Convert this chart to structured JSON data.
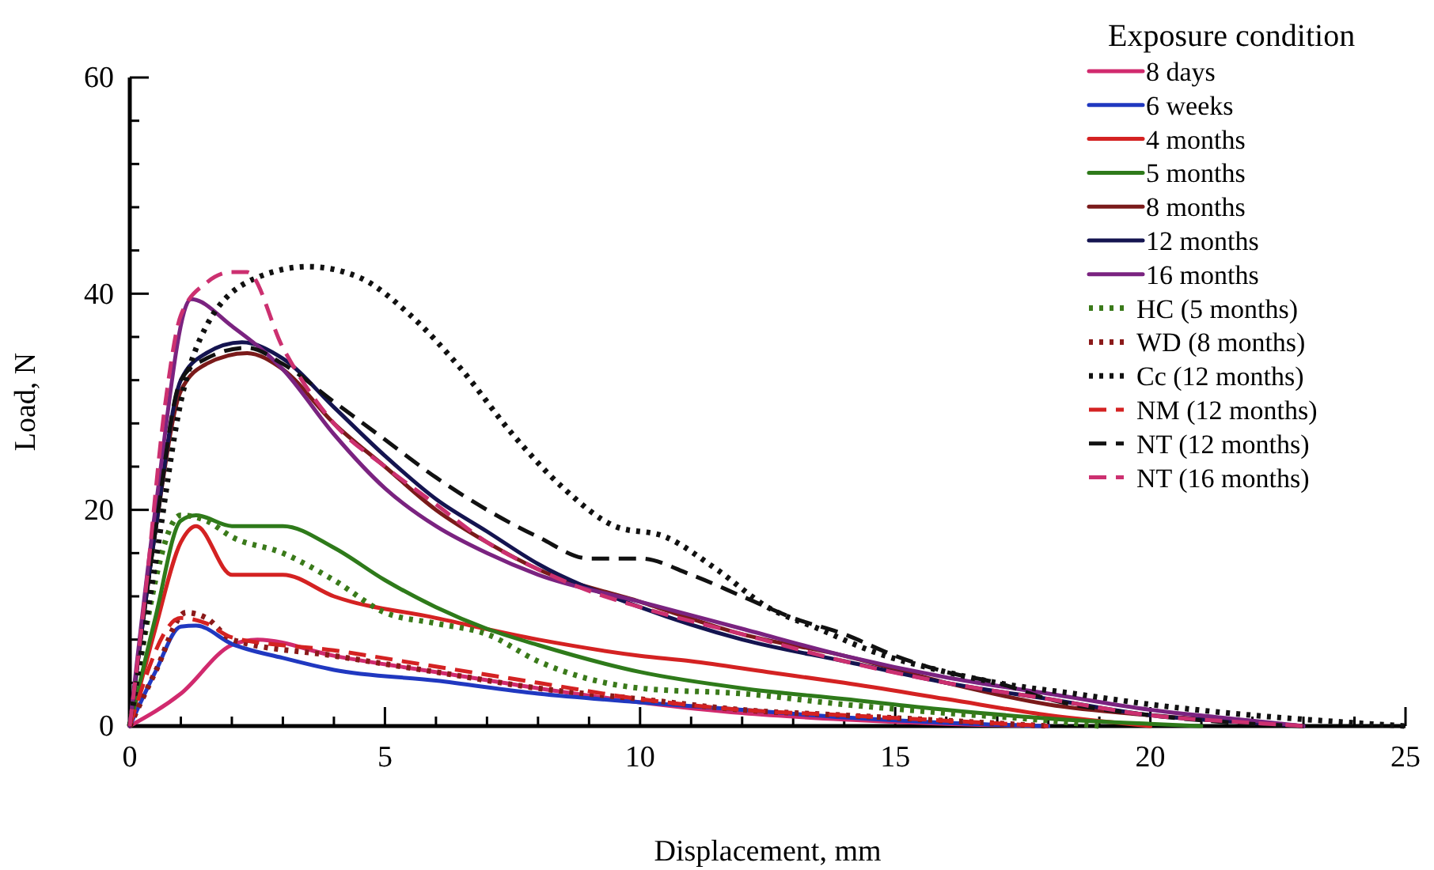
{
  "chart_data": {
    "type": "line",
    "xlabel": "Displacement, mm",
    "ylabel": "Load, N",
    "legend_title": "Exposure condition",
    "legend": "top right",
    "grid": false,
    "xlim": [
      0,
      25
    ],
    "ylim": [
      0,
      60
    ],
    "xticks": [
      0,
      {
        "value": 1,
        "label": null
      },
      {
        "value": 2,
        "label": null
      },
      {
        "value": 3,
        "label": null
      },
      {
        "value": 4,
        "label": null
      },
      5,
      {
        "value": 6,
        "label": null
      },
      {
        "value": 7,
        "label": null
      },
      {
        "value": 8,
        "label": null
      },
      {
        "value": 9,
        "label": null
      },
      10,
      {
        "value": 11,
        "label": null
      },
      {
        "value": 12,
        "label": null
      },
      {
        "value": 13,
        "label": null
      },
      {
        "value": 14,
        "label": null
      },
      15,
      {
        "value": 16,
        "label": null
      },
      {
        "value": 17,
        "label": null
      },
      {
        "value": 18,
        "label": null
      },
      {
        "value": 19,
        "label": null
      },
      20,
      {
        "value": 21,
        "label": null
      },
      {
        "value": 22,
        "label": null
      },
      {
        "value": 23,
        "label": null
      },
      {
        "value": 24,
        "label": null
      },
      25
    ],
    "yticks": [
      0,
      {
        "value": 4,
        "label": null
      },
      {
        "value": 8,
        "label": null
      },
      {
        "value": 12,
        "label": null
      },
      {
        "value": 16,
        "label": null
      },
      20,
      {
        "value": 24,
        "label": null
      },
      {
        "value": 28,
        "label": null
      },
      {
        "value": 32,
        "label": null
      },
      {
        "value": 36,
        "label": null
      },
      40,
      {
        "value": 44,
        "label": null
      },
      {
        "value": 48,
        "label": null
      },
      {
        "value": 52,
        "label": null
      },
      {
        "value": 56,
        "label": null
      },
      60
    ],
    "series": [
      {
        "name": "8 days",
        "color": "#d12a6e",
        "line_style": "solid",
        "x": [
          0,
          1,
          2,
          2.5,
          4,
          6,
          8,
          10,
          12,
          14,
          16,
          18
        ],
        "values": [
          0,
          3,
          7.5,
          8,
          6.5,
          5,
          3.5,
          2.2,
          1.2,
          0.6,
          0.2,
          0
        ]
      },
      {
        "name": "6 weeks",
        "color": "#2038c0",
        "line_style": "solid",
        "x": [
          0,
          0.5,
          1,
          1.3,
          2,
          3,
          4,
          6,
          8,
          10,
          12,
          14,
          16,
          18
        ],
        "values": [
          0,
          5,
          9.2,
          9.3,
          7.6,
          6.3,
          5.2,
          4.2,
          3,
          2.2,
          1.5,
          0.8,
          0.3,
          0
        ]
      },
      {
        "name": "4 months",
        "color": "#d42222",
        "line_style": "solid",
        "x": [
          0,
          0.5,
          1,
          1.3,
          2,
          3,
          4,
          6,
          8,
          10,
          11,
          12.5,
          14,
          16,
          18,
          20
        ],
        "values": [
          0,
          9,
          17,
          18.5,
          14,
          14,
          12,
          10,
          8,
          6.5,
          6,
          5,
          4,
          2.5,
          1,
          0
        ]
      },
      {
        "name": "5 months",
        "color": "#2e7a1a",
        "line_style": "solid",
        "x": [
          0,
          0.5,
          1,
          1.3,
          2,
          3,
          4,
          5,
          6,
          7,
          8,
          10,
          12,
          14,
          16,
          18,
          20,
          21
        ],
        "values": [
          0,
          10,
          19,
          19.5,
          18.5,
          18.5,
          16.5,
          13.5,
          11,
          9,
          7.5,
          5,
          3.5,
          2.5,
          1.5,
          0.7,
          0.2,
          0
        ]
      },
      {
        "name": "8 months",
        "color": "#7a1a1a",
        "line_style": "solid",
        "x": [
          0,
          0.5,
          1,
          1.5,
          2.3,
          3,
          4,
          5,
          6,
          7,
          8,
          10,
          12,
          14,
          16,
          18,
          20,
          22,
          23
        ],
        "values": [
          0,
          18,
          31,
          33.5,
          34.5,
          33,
          28,
          24,
          20,
          17,
          14.5,
          11.5,
          8.5,
          6.5,
          4,
          2,
          1,
          0.3,
          0
        ]
      },
      {
        "name": "12 months",
        "color": "#141450",
        "line_style": "solid",
        "x": [
          0,
          0.5,
          1,
          1.5,
          2.2,
          3,
          4,
          5,
          6,
          7,
          8,
          10,
          12,
          14,
          16,
          18,
          20,
          22,
          23
        ],
        "values": [
          0,
          18,
          32,
          34.5,
          35.5,
          34,
          29.5,
          25,
          21,
          18,
          15,
          11,
          8,
          6,
          4,
          2.5,
          1,
          0.3,
          0
        ]
      },
      {
        "name": "16 months",
        "color": "#7a2380",
        "line_style": "solid",
        "x": [
          0,
          0.5,
          1.2,
          2,
          3,
          4,
          5,
          6,
          7,
          8,
          10,
          12,
          14,
          16,
          18,
          20,
          22,
          23
        ],
        "values": [
          0,
          20,
          39.5,
          37,
          33,
          27,
          22,
          18.5,
          16,
          14,
          11.5,
          9,
          6.5,
          4.5,
          3,
          1.5,
          0.5,
          0
        ]
      },
      {
        "name": "HC (5 months)",
        "color": "#3a7a1a",
        "line_style": "dotted",
        "x": [
          0,
          1,
          1.5,
          2,
          3,
          4,
          5,
          6,
          7,
          8,
          10,
          12,
          14,
          16,
          18,
          19
        ],
        "values": [
          0,
          19.5,
          19,
          17.5,
          16,
          13.5,
          10.5,
          9.5,
          8.5,
          6,
          3.5,
          3,
          2,
          1.2,
          0.5,
          0
        ]
      },
      {
        "name": "WD (8 months)",
        "color": "#8b1a1a",
        "line_style": "dotted",
        "x": [
          0,
          0.5,
          1.1,
          1.5,
          2,
          4,
          6,
          8,
          10,
          12,
          14,
          16,
          18
        ],
        "values": [
          0,
          5,
          10.5,
          10,
          8,
          6.5,
          5,
          3.5,
          2.5,
          1.5,
          1,
          0.5,
          0
        ]
      },
      {
        "name": "Cc (12 months)",
        "color": "#111111",
        "line_style": "dotted",
        "x": [
          0,
          0.5,
          1,
          1.5,
          2.5,
          3.5,
          4.5,
          5.5,
          6.5,
          7.5,
          8.5,
          9.5,
          10.5,
          11.5,
          12.5,
          13.5,
          14.5,
          16,
          17,
          18.5,
          20,
          22,
          24,
          25
        ],
        "values": [
          0,
          15,
          30,
          37,
          41.5,
          42.5,
          41.5,
          38,
          33,
          27,
          22,
          18.5,
          17.5,
          14.5,
          11,
          9,
          7,
          5,
          4,
          3,
          2,
          1,
          0.3,
          0
        ]
      },
      {
        "name": "NM (12 months)",
        "color": "#d42222",
        "line_style": "dashed",
        "x": [
          0,
          1,
          1.5,
          2,
          4,
          6,
          8,
          10,
          12,
          14,
          16,
          18
        ],
        "values": [
          0,
          10,
          9.5,
          8.2,
          7,
          5.5,
          4,
          2.5,
          1.5,
          1,
          0.5,
          0
        ]
      },
      {
        "name": "NT (12 months)",
        "color": "#111111",
        "line_style": "dashed",
        "x": [
          0,
          0.5,
          1,
          1.5,
          2.3,
          3,
          4,
          5,
          6,
          7,
          8,
          9,
          10,
          11,
          12,
          13,
          14,
          15,
          16,
          17,
          18,
          20,
          22,
          23
        ],
        "values": [
          0,
          18,
          32,
          34,
          35,
          33.5,
          30,
          26.5,
          23,
          20,
          17.5,
          15.5,
          15.5,
          14,
          12,
          10,
          8.5,
          6.5,
          5,
          4,
          2.5,
          1,
          0.2,
          0
        ]
      },
      {
        "name": "NT (16 months)",
        "color": "#cc3070",
        "line_style": "dashed",
        "x": [
          0,
          0.3,
          0.7,
          1,
          1.5,
          2,
          2.3,
          3,
          4,
          5,
          6,
          7,
          8,
          9,
          10,
          12,
          14,
          16,
          18,
          20,
          22,
          23
        ],
        "values": [
          0,
          12,
          30,
          38,
          41,
          42,
          42,
          35,
          28,
          24,
          20.5,
          17,
          14.5,
          12.5,
          11,
          8.5,
          6,
          4,
          2.5,
          1,
          0.3,
          0
        ]
      }
    ]
  }
}
